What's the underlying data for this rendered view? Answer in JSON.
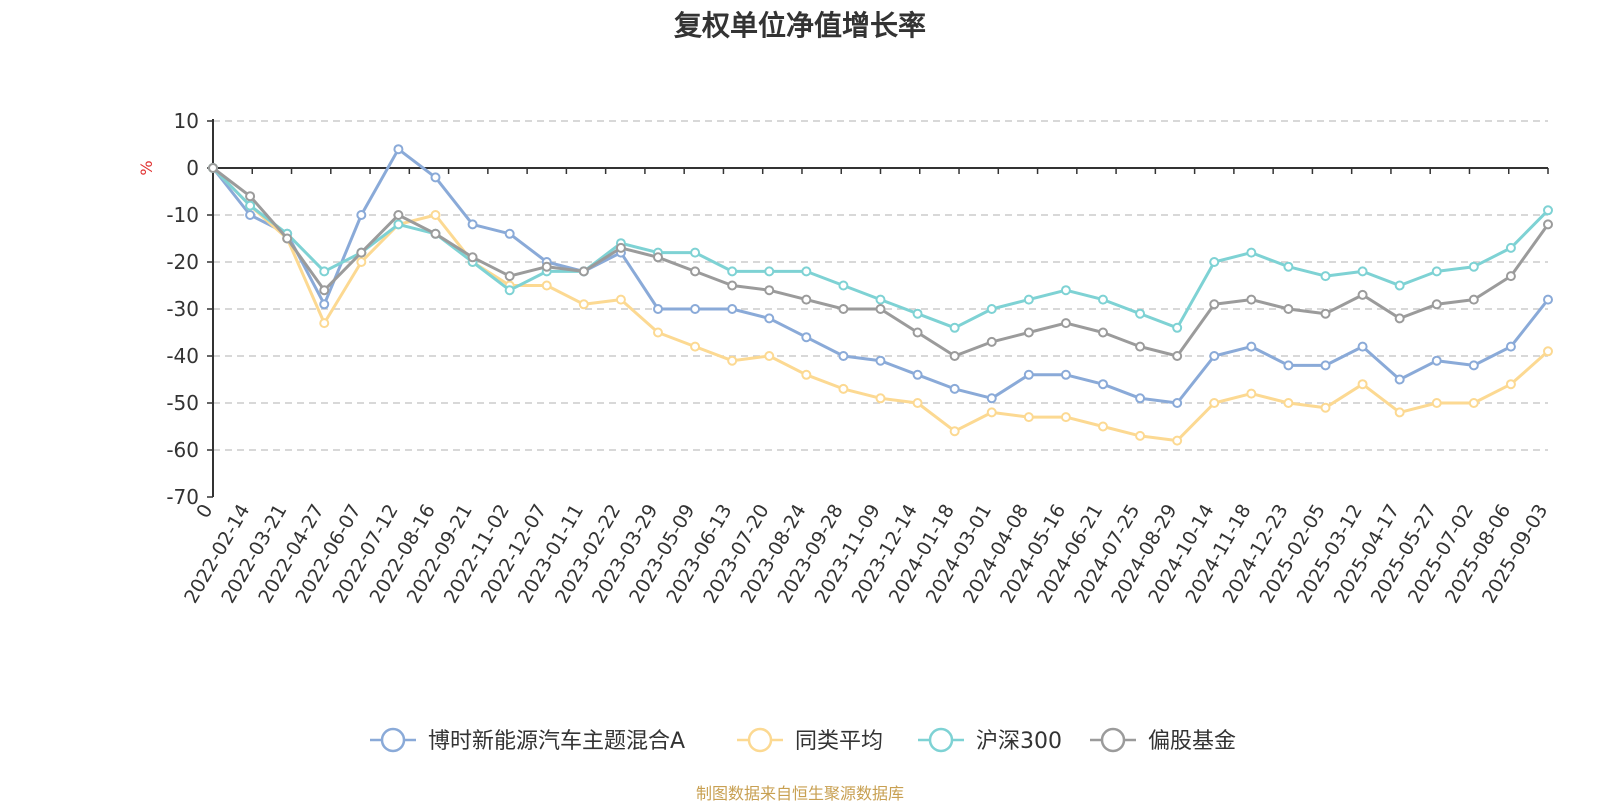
{
  "title": "复权单位净值增长率",
  "source": "制图数据来自恒生聚源数据库",
  "chart_data": {
    "type": "line",
    "title": "复权单位净值增长率",
    "ylabel": "%",
    "ylim": [
      -70,
      10
    ],
    "yticks": [
      10,
      0,
      -10,
      -20,
      -30,
      -40,
      -50,
      -60,
      -70
    ],
    "grid": true,
    "legend_position": "bottom",
    "x_labels": [
      "0",
      "2022-02-14",
      "2022-03-21",
      "2022-04-27",
      "2022-06-07",
      "2022-07-12",
      "2022-08-16",
      "2022-09-21",
      "2022-11-02",
      "2022-12-07",
      "2023-01-11",
      "2023-02-22",
      "2023-03-29",
      "2023-05-09",
      "2023-06-13",
      "2023-07-20",
      "2023-08-24",
      "2023-09-28",
      "2023-11-09",
      "2023-12-14",
      "2024-01-18",
      "2024-03-01",
      "2024-04-08",
      "2024-05-16",
      "2024-06-21",
      "2024-07-25",
      "2024-08-29",
      "2024-10-14",
      "2024-11-18",
      "2024-12-23",
      "2025-02-05",
      "2025-03-12",
      "2025-04-17",
      "2025-05-27",
      "2025-07-02",
      "2025-08-06",
      "2025-09-03"
    ],
    "series": [
      {
        "name": "博时新能源汽车主题混合A",
        "color": "#8aaad8",
        "values": [
          0,
          -10,
          -14,
          -29,
          -10,
          4,
          -2,
          -12,
          -14,
          -20,
          -22,
          -18,
          -30,
          -30,
          -30,
          -32,
          -36,
          -40,
          -41,
          -44,
          -47,
          -49,
          -44,
          -44,
          -46,
          -49,
          -50,
          -40,
          -38,
          -42,
          -42,
          -38,
          -45,
          -41,
          -42,
          -38,
          -28
        ]
      },
      {
        "name": "同类平均",
        "color": "#fcd992",
        "values": [
          0,
          -8,
          -15,
          -33,
          -20,
          -12,
          -10,
          -20,
          -25,
          -25,
          -29,
          -28,
          -35,
          -38,
          -41,
          -40,
          -44,
          -47,
          -49,
          -50,
          -56,
          -52,
          -53,
          -53,
          -55,
          -57,
          -58,
          -50,
          -48,
          -50,
          -51,
          -46,
          -52,
          -50,
          -50,
          -46,
          -39
        ]
      },
      {
        "name": "沪深300",
        "color": "#7ed2d4",
        "values": [
          0,
          -8,
          -14,
          -22,
          -18,
          -12,
          -14,
          -20,
          -26,
          -22,
          -22,
          -16,
          -18,
          -18,
          -22,
          -22,
          -22,
          -25,
          -28,
          -31,
          -34,
          -30,
          -28,
          -26,
          -28,
          -31,
          -34,
          -20,
          -18,
          -21,
          -23,
          -22,
          -25,
          -22,
          -21,
          -17,
          -9
        ]
      },
      {
        "name": "偏股基金",
        "color": "#9b9b9b",
        "values": [
          0,
          -6,
          -15,
          -26,
          -18,
          -10,
          -14,
          -19,
          -23,
          -21,
          -22,
          -17,
          -19,
          -22,
          -25,
          -26,
          -28,
          -30,
          -30,
          -35,
          -40,
          -37,
          -35,
          -33,
          -35,
          -38,
          -40,
          -29,
          -28,
          -30,
          -31,
          -27,
          -32,
          -29,
          -28,
          -23,
          -12
        ]
      }
    ]
  }
}
